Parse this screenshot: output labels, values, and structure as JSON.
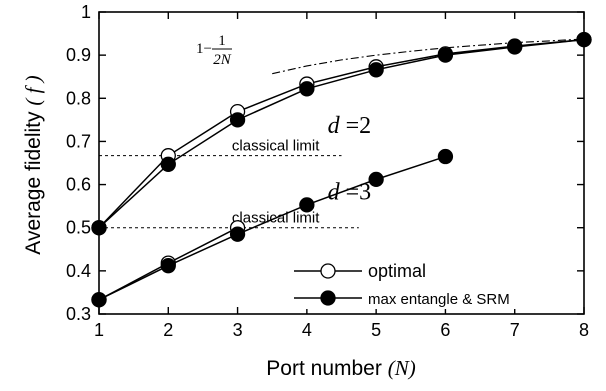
{
  "chart_data": {
    "type": "line",
    "xlabel": "Port number",
    "xlabel_var": "(N)",
    "ylabel": "Average fidelity",
    "ylabel_var": "( f )",
    "xlim": [
      1,
      8
    ],
    "ylim": [
      0.3,
      1.0
    ],
    "xticks": [
      "1",
      "2",
      "3",
      "4",
      "5",
      "6",
      "7",
      "8"
    ],
    "yticks": [
      "0.3",
      "0.4",
      "0.5",
      "0.6",
      "0.7",
      "0.8",
      "0.9",
      "1"
    ],
    "grid": false,
    "legend_position": "bottom-right",
    "series": [
      {
        "name": "optimal",
        "group": "d=2",
        "marker": "open-circle",
        "x": [
          1,
          2,
          3,
          4,
          5,
          6,
          7,
          8
        ],
        "y": [
          0.5,
          0.667,
          0.769,
          0.833,
          0.873,
          0.903,
          0.921,
          0.936
        ]
      },
      {
        "name": "max entangle & SRM",
        "group": "d=2",
        "marker": "filled-circle",
        "x": [
          1,
          2,
          3,
          4,
          5,
          6,
          7,
          8
        ],
        "y": [
          0.5,
          0.647,
          0.75,
          0.822,
          0.866,
          0.9,
          0.919,
          0.936
        ]
      },
      {
        "name": "optimal",
        "group": "d=3",
        "marker": "open-circle",
        "x": [
          1,
          2,
          3
        ],
        "y": [
          0.333,
          0.418,
          0.5
        ]
      },
      {
        "name": "max entangle & SRM",
        "group": "d=3",
        "marker": "filled-circle",
        "x": [
          1,
          2,
          3,
          4,
          5,
          6
        ],
        "y": [
          0.333,
          0.412,
          0.485,
          0.553,
          0.612,
          0.665
        ]
      }
    ],
    "bound_curve": {
      "label_prefix": "1−",
      "label_numerator": "1",
      "label_denominator": "2N",
      "style": "dash-dot",
      "x": [
        3.5,
        4,
        4.5,
        5,
        5.5,
        6,
        6.5,
        7,
        7.5,
        8
      ],
      "y": [
        0.857,
        0.875,
        0.889,
        0.9,
        0.909,
        0.917,
        0.923,
        0.929,
        0.933,
        0.9375
      ]
    },
    "reference_lines": [
      {
        "label": "classical limit",
        "y": 0.667,
        "x_range": [
          1,
          4.5
        ]
      },
      {
        "label": "classical limit",
        "y": 0.5,
        "x_range": [
          1,
          4.75
        ]
      }
    ],
    "annotations": [
      {
        "text": "d =2",
        "x": 4.3,
        "y": 0.72
      },
      {
        "text": "d =3",
        "x": 4.3,
        "y": 0.565
      }
    ]
  }
}
